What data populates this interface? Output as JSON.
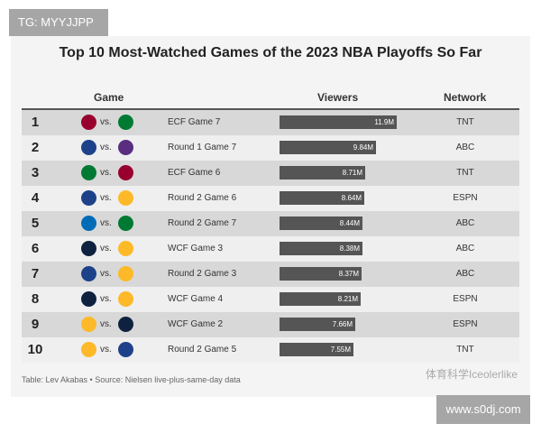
{
  "watermark_top": "TG: MYYJJPP",
  "watermark_bottom": "www.s0dj.com",
  "watermark_wechat": "体育科学Iceolerlike",
  "chart_data": {
    "type": "table",
    "title": "Top 10 Most-Watched Games of the 2023 NBA Playoffs So Far",
    "columns": [
      "Game",
      "Viewers",
      "Network"
    ],
    "vs_label": "vs.",
    "bar_color": "#555555",
    "rows": [
      {
        "rank": "1",
        "teams": [
          "heat-logo",
          "celtics-logo"
        ],
        "game": "ECF Game 7",
        "viewers": 11.9,
        "viewers_label": "11.9M",
        "network": "TNT"
      },
      {
        "rank": "2",
        "teams": [
          "warriors-logo",
          "kings-logo"
        ],
        "game": "Round 1 Game 7",
        "viewers": 9.84,
        "viewers_label": "9.84M",
        "network": "ABC"
      },
      {
        "rank": "3",
        "teams": [
          "celtics-logo",
          "heat-logo"
        ],
        "game": "ECF Game 6",
        "viewers": 8.71,
        "viewers_label": "8.71M",
        "network": "TNT"
      },
      {
        "rank": "4",
        "teams": [
          "warriors-logo",
          "lakers-logo"
        ],
        "game": "Round 2 Game 6",
        "viewers": 8.64,
        "viewers_label": "8.64M",
        "network": "ESPN"
      },
      {
        "rank": "5",
        "teams": [
          "76ers-logo",
          "celtics-logo"
        ],
        "game": "Round 2 Game 7",
        "viewers": 8.44,
        "viewers_label": "8.44M",
        "network": "ABC"
      },
      {
        "rank": "6",
        "teams": [
          "nuggets-logo",
          "lakers-logo"
        ],
        "game": "WCF Game 3",
        "viewers": 8.38,
        "viewers_label": "8.38M",
        "network": "ABC"
      },
      {
        "rank": "7",
        "teams": [
          "warriors-logo",
          "lakers-logo"
        ],
        "game": "Round 2 Game 3",
        "viewers": 8.37,
        "viewers_label": "8.37M",
        "network": "ABC"
      },
      {
        "rank": "8",
        "teams": [
          "nuggets-logo",
          "lakers-logo"
        ],
        "game": "WCF Game 4",
        "viewers": 8.21,
        "viewers_label": "8.21M",
        "network": "ESPN"
      },
      {
        "rank": "9",
        "teams": [
          "lakers-logo",
          "nuggets-logo"
        ],
        "game": "WCF Game 2",
        "viewers": 7.66,
        "viewers_label": "7.66M",
        "network": "ESPN"
      },
      {
        "rank": "10",
        "teams": [
          "lakers-logo",
          "warriors-logo"
        ],
        "game": "Round 2 Game 5",
        "viewers": 7.55,
        "viewers_label": "7.55M",
        "network": "TNT"
      }
    ],
    "source": "Table: Lev Akabas • Source: Nielsen live-plus-same-day data"
  }
}
